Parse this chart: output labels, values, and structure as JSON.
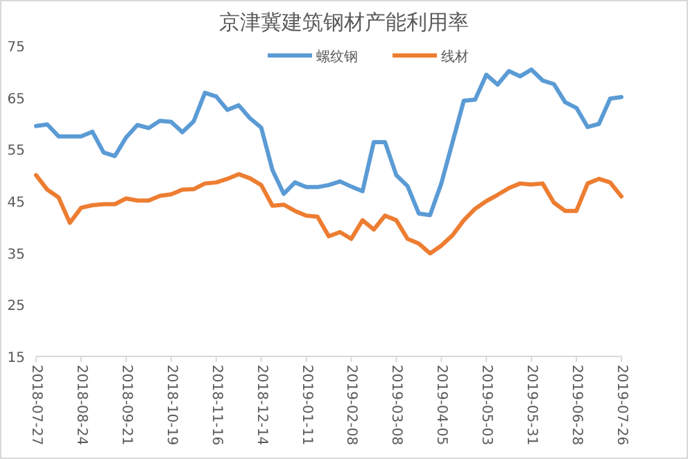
{
  "chart_data": {
    "type": "line",
    "title": "京津冀建筑钢材产能利用率",
    "categories": [
      "2018-07-27",
      null,
      null,
      null,
      "2018-08-24",
      null,
      null,
      null,
      "2018-09-21",
      null,
      null,
      null,
      "2018-10-19",
      null,
      null,
      null,
      "2018-11-16",
      null,
      null,
      null,
      "2018-12-14",
      null,
      null,
      null,
      "2019-01-11",
      null,
      null,
      null,
      "2019-02-08",
      null,
      null,
      null,
      "2019-03-08",
      null,
      null,
      null,
      "2019-04-05",
      null,
      null,
      null,
      "2019-05-03",
      null,
      null,
      null,
      "2019-05-31",
      null,
      null,
      null,
      "2019-06-28",
      null,
      null,
      null,
      "2019-07-26"
    ],
    "series": [
      {
        "name": "螺纹钢",
        "color": "#5b9bd5",
        "values": [
          59.5,
          59.8,
          57.5,
          57.5,
          57.5,
          58.4,
          54.4,
          53.7,
          57.3,
          59.7,
          59.1,
          60.5,
          60.3,
          58.3,
          60.4,
          65.9,
          65.2,
          62.6,
          63.5,
          61.0,
          59.2,
          51.0,
          46.4,
          48.6,
          47.7,
          47.7,
          48.1,
          48.8,
          47.8,
          46.9,
          56.4,
          56.4,
          50.0,
          47.9,
          42.6,
          42.3,
          48.4,
          56.4,
          64.4,
          64.6,
          69.4,
          67.5,
          70.1,
          69.1,
          70.4,
          68.3,
          67.6,
          64.1,
          63.0,
          59.3,
          59.9,
          64.8,
          65.1
        ]
      },
      {
        "name": "线材",
        "color": "#ed7d31",
        "values": [
          50.0,
          47.2,
          45.7,
          40.8,
          43.7,
          44.2,
          44.4,
          44.4,
          45.5,
          45.1,
          45.1,
          46.0,
          46.3,
          47.2,
          47.3,
          48.4,
          48.6,
          49.3,
          50.2,
          49.4,
          48.1,
          44.1,
          44.3,
          43.1,
          42.2,
          42.0,
          38.2,
          39.0,
          37.7,
          41.3,
          39.5,
          42.2,
          41.3,
          37.7,
          36.8,
          34.9,
          36.4,
          38.4,
          41.3,
          43.5,
          45.0,
          46.2,
          47.5,
          48.4,
          48.2,
          48.4,
          44.7,
          43.1,
          43.1,
          48.4,
          49.3,
          48.6,
          45.9
        ]
      }
    ],
    "ylim": [
      15,
      75
    ],
    "yticks": [
      15,
      25,
      35,
      45,
      55,
      65,
      75
    ],
    "legend": "top"
  }
}
